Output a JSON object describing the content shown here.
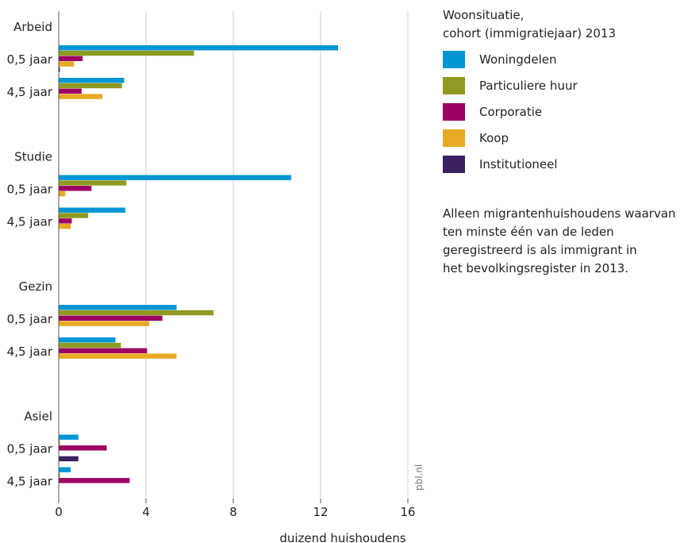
{
  "chart_data": {
    "type": "bar",
    "orientation": "horizontal",
    "groups": [
      {
        "name": "Arbeid",
        "rows": [
          {
            "label": "0,5 jaar",
            "values": [
              12.8,
              6.2,
              1.1,
              0.7,
              0.05
            ]
          },
          {
            "label": "4,5 jaar",
            "values": [
              3.0,
              2.9,
              1.05,
              2.0,
              0
            ]
          }
        ]
      },
      {
        "name": "Studie",
        "rows": [
          {
            "label": "0,5 jaar",
            "values": [
              10.65,
              3.1,
              1.5,
              0.3,
              0
            ]
          },
          {
            "label": "4,5 jaar",
            "values": [
              3.05,
              1.35,
              0.6,
              0.55,
              0
            ]
          }
        ]
      },
      {
        "name": "Gezin",
        "rows": [
          {
            "label": "0,5 jaar",
            "values": [
              5.4,
              7.1,
              4.75,
              4.15,
              0
            ]
          },
          {
            "label": "4,5 jaar",
            "values": [
              2.6,
              2.85,
              4.05,
              5.4,
              0
            ]
          }
        ]
      },
      {
        "name": "Asiel",
        "rows": [
          {
            "label": "0,5 jaar",
            "values": [
              0.9,
              0.05,
              2.2,
              0,
              0.9
            ]
          },
          {
            "label": "4,5 jaar",
            "values": [
              0.55,
              0.05,
              3.25,
              0,
              0
            ]
          }
        ]
      }
    ],
    "series": [
      {
        "name": "Woningdelen",
        "color": "#0096d6"
      },
      {
        "name": "Particuliere huur",
        "color": "#8e9a21"
      },
      {
        "name": "Corporatie",
        "color": "#9c0062"
      },
      {
        "name": "Koop",
        "color": "#e8a925"
      },
      {
        "name": "Institutioneel",
        "color": "#3c2163"
      }
    ],
    "xlabel": "duizend huishoudens",
    "xticks": [
      "0",
      "4",
      "8",
      "12",
      "16"
    ],
    "xlim": [
      0,
      16
    ],
    "grid": true,
    "legend_title": [
      "Woonsituatie,",
      "cohort (immigratiejaar) 2013"
    ],
    "note": [
      "Alleen migrantenhuishoudens waarvan",
      "ten minste één van de leden",
      "geregistreerd is als immigrant in",
      "het bevolkingsregister in 2013."
    ],
    "watermark": "pbl.nl"
  }
}
